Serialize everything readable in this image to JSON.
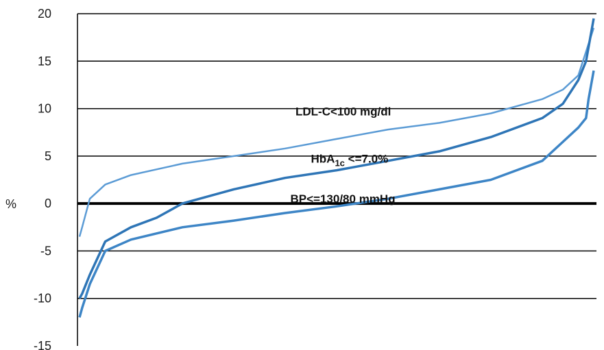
{
  "chart_data": {
    "type": "line",
    "title": "",
    "xlabel": "",
    "ylabel": "%",
    "ylim": [
      -15,
      20
    ],
    "yticks": [
      20,
      15,
      10,
      5,
      0,
      -5,
      -10,
      -15
    ],
    "grid": true,
    "legend": "none",
    "series": [
      {
        "name": "LDL-C<100 mg/dl",
        "label_parts": [
          "LDL-C<100 mg/dl"
        ],
        "color": "#5b9bd5",
        "x": [
          0,
          0.005,
          0.02,
          0.05,
          0.1,
          0.2,
          0.3,
          0.4,
          0.5,
          0.6,
          0.7,
          0.8,
          0.9,
          0.94,
          0.97,
          0.985,
          1.0
        ],
        "y": [
          -3.5,
          -2.5,
          0.5,
          2.0,
          3.0,
          4.2,
          5.0,
          5.8,
          6.8,
          7.8,
          8.5,
          9.5,
          11.0,
          12.0,
          13.5,
          16.0,
          18.5
        ]
      },
      {
        "name": "HbA1c <=7.0%",
        "label_parts": [
          "HbA",
          "1c",
          " <=7.0%"
        ],
        "color": "#2e75b6",
        "x": [
          0,
          0.005,
          0.02,
          0.05,
          0.1,
          0.15,
          0.2,
          0.3,
          0.4,
          0.5,
          0.6,
          0.7,
          0.8,
          0.9,
          0.94,
          0.97,
          0.985,
          1.0
        ],
        "y": [
          -10.0,
          -9.5,
          -7.5,
          -4.0,
          -2.5,
          -1.5,
          0.0,
          1.5,
          2.7,
          3.5,
          4.5,
          5.5,
          7.0,
          9.0,
          10.5,
          13.0,
          15.0,
          19.5
        ]
      },
      {
        "name": "BP<=130/80 mmHg",
        "label_parts": [
          "BP<=130/80 mmHg"
        ],
        "color": "#3d85c6",
        "x": [
          0,
          0.005,
          0.02,
          0.05,
          0.1,
          0.2,
          0.3,
          0.4,
          0.5,
          0.6,
          0.7,
          0.8,
          0.9,
          0.94,
          0.97,
          0.985,
          0.99,
          1.0
        ],
        "y": [
          -12.0,
          -11.0,
          -8.5,
          -5.0,
          -3.8,
          -2.5,
          -1.8,
          -1.0,
          -0.3,
          0.5,
          1.5,
          2.5,
          4.5,
          6.5,
          8.0,
          9.0,
          11.0,
          14.0
        ]
      }
    ],
    "annotations": [
      {
        "series_index": 0,
        "x": 0.42,
        "y": 9.3
      },
      {
        "series_index": 1,
        "x": 0.45,
        "y": 4.3
      },
      {
        "series_index": 2,
        "x": 0.41,
        "y": 0.1
      }
    ]
  }
}
